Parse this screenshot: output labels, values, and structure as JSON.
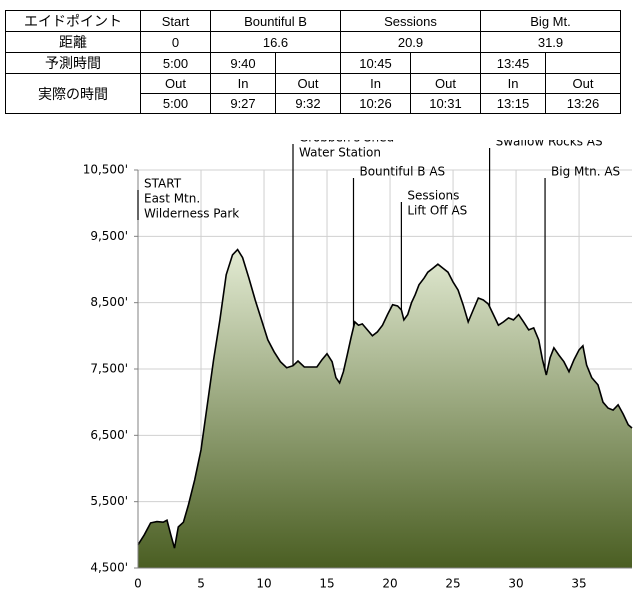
{
  "table": {
    "header": [
      "エイドポイント",
      "Start",
      "Bountiful B",
      "Sessions",
      "Big Mt."
    ],
    "distance": {
      "label": "距離",
      "values": [
        "0",
        "16.6",
        "20.9",
        "31.9"
      ]
    },
    "predicted": {
      "label": "予測時間",
      "values": [
        "5:00",
        "9:40",
        "10:45",
        "13:45"
      ]
    },
    "actual": {
      "label": "実際の時間",
      "subheads": [
        "Out",
        "In",
        "Out",
        "In",
        "Out",
        "In",
        "Out"
      ],
      "values": [
        "5:00",
        "9:27",
        "9:32",
        "10:26",
        "10:31",
        "13:15",
        "13:26"
      ]
    }
  },
  "chart_data": {
    "type": "area",
    "x": [
      0,
      0.5,
      1,
      1.5,
      2,
      2.3,
      2.6,
      2.9,
      3.2,
      3.6,
      4,
      4.5,
      5,
      5.5,
      6,
      6.5,
      7,
      7.5,
      7.9,
      8.3,
      8.8,
      9.3,
      9.8,
      10.3,
      10.8,
      11.3,
      11.8,
      12.3,
      12.7,
      13.2,
      13.7,
      14.2,
      14.6,
      15,
      15.4,
      15.7,
      16,
      16.3,
      16.6,
      16.9,
      17.2,
      17.5,
      17.8,
      18.2,
      18.6,
      19,
      19.4,
      19.8,
      20.2,
      20.6,
      20.9,
      21.1,
      21.4,
      21.7,
      22,
      22.3,
      22.7,
      23,
      23.4,
      23.8,
      24.2,
      24.6,
      25,
      25.4,
      25.8,
      26.2,
      26.6,
      27,
      27.4,
      27.8,
      28.2,
      28.6,
      29,
      29.4,
      29.8,
      30.2,
      30.6,
      31,
      31.4,
      31.8,
      32.1,
      32.4,
      32.7,
      33,
      33.4,
      33.8,
      34.2,
      34.6,
      35,
      35.3,
      35.6,
      36,
      36.5,
      36.9,
      37.3,
      37.7,
      38.1,
      38.5,
      38.9,
      39.2
    ],
    "values": [
      4850,
      5000,
      5180,
      5200,
      5190,
      5220,
      5000,
      4800,
      5120,
      5190,
      5450,
      5830,
      6280,
      6960,
      7640,
      8240,
      8920,
      9220,
      9300,
      9180,
      8870,
      8540,
      8240,
      7940,
      7760,
      7610,
      7520,
      7550,
      7620,
      7530,
      7530,
      7530,
      7640,
      7730,
      7610,
      7370,
      7290,
      7460,
      7710,
      7970,
      8210,
      8160,
      8180,
      8090,
      8000,
      8060,
      8160,
      8320,
      8470,
      8450,
      8390,
      8240,
      8320,
      8500,
      8620,
      8770,
      8870,
      8960,
      9020,
      9080,
      9020,
      8960,
      8810,
      8690,
      8470,
      8210,
      8390,
      8570,
      8540,
      8480,
      8320,
      8160,
      8210,
      8270,
      8240,
      8320,
      8210,
      8090,
      8120,
      7940,
      7640,
      7410,
      7670,
      7820,
      7710,
      7610,
      7460,
      7640,
      7790,
      7850,
      7560,
      7370,
      7260,
      7000,
      6910,
      6880,
      6960,
      6820,
      6660,
      6610
    ],
    "xlim": [
      0,
      39.2
    ],
    "ylim": [
      4500,
      10500
    ],
    "xticks": [
      0,
      5,
      10,
      15,
      20,
      25,
      30,
      35
    ],
    "yticks": [
      {
        "value": 4500,
        "label": "4,500'"
      },
      {
        "value": 5500,
        "label": "5,500'"
      },
      {
        "value": 6500,
        "label": "6,500'"
      },
      {
        "value": 7500,
        "label": "7,500'"
      },
      {
        "value": 8500,
        "label": "8,500'"
      },
      {
        "value": 9500,
        "label": "9,500'"
      },
      {
        "value": 10500,
        "label": "10,500'"
      }
    ],
    "grid": true,
    "color_top": "#e3ebd3",
    "color_bottom": "#4a5e22",
    "line_color": "#000000",
    "annotations": [
      {
        "x": 0,
        "text": [
          "START",
          "East Mtn.",
          "Wilderness Park"
        ]
      },
      {
        "x": 12.3,
        "text": [
          "Grobben's Shed",
          "Water Station"
        ]
      },
      {
        "x": 17.1,
        "text": [
          "Bountiful B AS"
        ]
      },
      {
        "x": 20.9,
        "text": [
          "Sessions",
          "Lift Off AS"
        ]
      },
      {
        "x": 27.9,
        "text": [
          "Swallow Rocks AS"
        ]
      },
      {
        "x": 32.3,
        "text": [
          "Big Mtn. AS"
        ]
      }
    ]
  }
}
